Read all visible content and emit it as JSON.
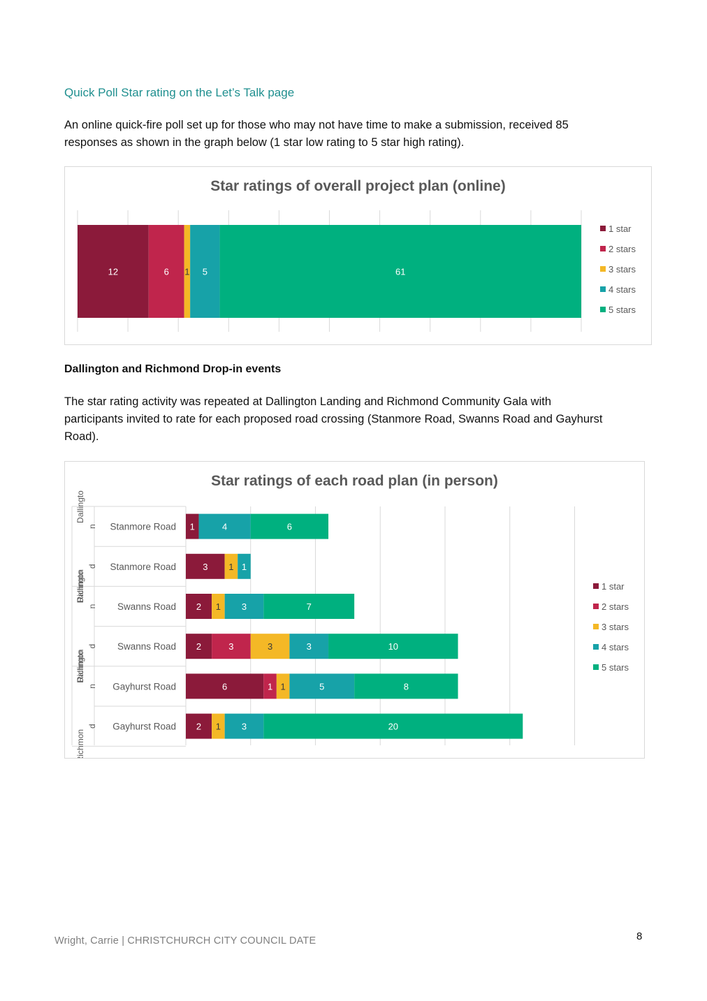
{
  "section": {
    "heading": "Quick Poll Star rating on the Let’s Talk page",
    "paragraph1_line1": "An online quick-fire poll set up for those who may not have time to make a submission, received 85",
    "paragraph1_line2": "responses as shown in the graph below (1 star low rating to 5 star high rating).",
    "subheading": "Dallington and Richmond Drop-in events",
    "paragraph2_line1": "The star rating activity was repeated at Dallington Landing and Richmond Community Gala with",
    "paragraph2_line2": "participants invited to rate for each proposed road crossing (Stanmore Road, Swanns Road and Gayhurst",
    "paragraph2_line3": "Road)."
  },
  "colors": {
    "s1": "#8b1a3a",
    "s2": "#c0254c",
    "s3": "#f4b826",
    "s4": "#17a2a8",
    "s5": "#00b07f",
    "grid": "#d9d9d9",
    "axis_text": "#595959"
  },
  "chart_data": [
    {
      "type": "bar",
      "orientation": "horizontal",
      "stacked": true,
      "title": "Star ratings of overall project plan (online)",
      "categories": [
        ""
      ],
      "series": [
        {
          "name": "1 star",
          "values": [
            12
          ]
        },
        {
          "name": "2 stars",
          "values": [
            6
          ]
        },
        {
          "name": "3 stars",
          "values": [
            1
          ]
        },
        {
          "name": "4 stars",
          "values": [
            5
          ]
        },
        {
          "name": "5 stars",
          "values": [
            61
          ]
        }
      ],
      "xlim": [
        0,
        85
      ],
      "grid": true,
      "legend": "right"
    },
    {
      "type": "bar",
      "orientation": "horizontal",
      "stacked": true,
      "title": "Star ratings of each road plan (in person)",
      "categories": [
        "Stanmore Road",
        "Stanmore Road",
        "Swanns Road",
        "Swanns Road",
        "Gayhurst Road",
        "Gayhurst Road"
      ],
      "group_labels": [
        "Dallingto",
        "n",
        "Richmon",
        "d",
        "Dallingto",
        "n",
        "Richmon",
        "d",
        "Dallingto",
        "n",
        "Richmon",
        "d"
      ],
      "series": [
        {
          "name": "1 star",
          "values": [
            1,
            3,
            2,
            2,
            6,
            2
          ]
        },
        {
          "name": "2 stars",
          "values": [
            0,
            0,
            0,
            3,
            1,
            0
          ]
        },
        {
          "name": "3 stars",
          "values": [
            0,
            1,
            1,
            3,
            1,
            1
          ]
        },
        {
          "name": "4 stars",
          "values": [
            4,
            1,
            3,
            3,
            5,
            3
          ]
        },
        {
          "name": "5 stars",
          "values": [
            6,
            0,
            7,
            10,
            8,
            20
          ]
        }
      ],
      "xlim": [
        0,
        30
      ],
      "grid": true,
      "legend": "right"
    }
  ],
  "footer": {
    "text": "Wright, Carrie | CHRISTCHURCH CITY COUNCIL   DATE",
    "page_number": "8"
  }
}
